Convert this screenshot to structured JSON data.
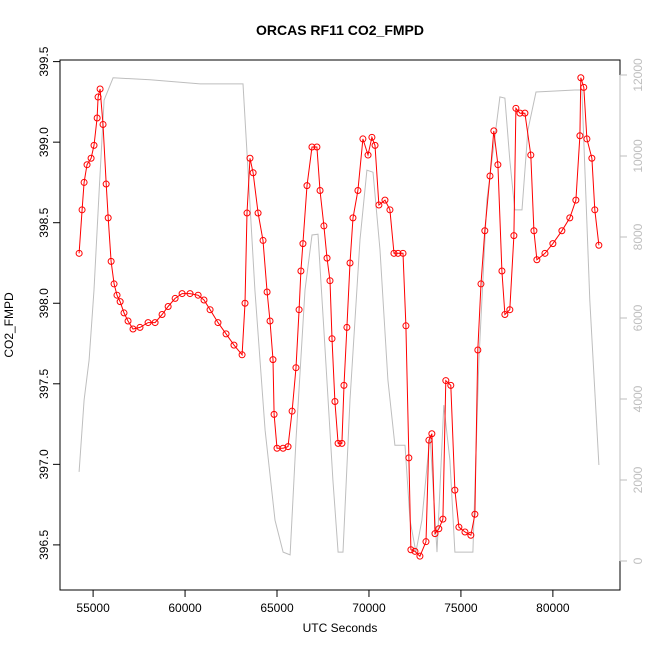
{
  "chart_data": {
    "type": "line",
    "title": "ORCAS RF11 CO2_FMPD",
    "xlabel": "UTC Seconds",
    "ylabel": "CO2_FMPD",
    "xlim": [
      53200,
      83650
    ],
    "xticks": [
      55000,
      60000,
      65000,
      70000,
      75000,
      80000
    ],
    "ylim": [
      396.22,
      399.51
    ],
    "yticks": [
      396.5,
      {
        "value": 397,
        "label": "397.0"
      },
      397.5,
      {
        "value": 398,
        "label": "398.0"
      },
      398.5,
      {
        "value": 399,
        "label": "399.0"
      },
      399.5
    ],
    "y2lim": [
      -716,
      12370
    ],
    "y2ticks": [
      0,
      2000,
      4000,
      6000,
      8000,
      10000,
      12000
    ],
    "series": [
      {
        "color": "#bebebe",
        "axis": "y2",
        "x": [
          54240,
          54510,
          54780,
          55050,
          55330,
          55600,
          56090,
          58100,
          60820,
          63150,
          63420,
          63800,
          64350,
          64890,
          65330,
          65710,
          66030,
          66520,
          66900,
          67230,
          67550,
          68040,
          68320,
          68590,
          68970,
          69510,
          69890,
          70220,
          70600,
          71030,
          71410,
          71960,
          72230,
          72550,
          72880,
          73320,
          73700,
          74070,
          74400,
          74670,
          75650,
          75980,
          76410,
          77120,
          77390,
          77660,
          77930,
          78320,
          78640,
          79080,
          81200,
          81580,
          82010,
          82500
        ],
        "values": [
          2200,
          3975,
          4960,
          6690,
          9160,
          11380,
          11930,
          11880,
          11780,
          11780,
          9650,
          6690,
          3230,
          1010,
          220,
          150,
          2990,
          6690,
          8050,
          8070,
          5700,
          2000,
          220,
          220,
          3980,
          7930,
          9650,
          9600,
          7680,
          4470,
          2860,
          2860,
          1010,
          220,
          1010,
          3110,
          220,
          3850,
          2490,
          220,
          220,
          4960,
          8910,
          11460,
          11430,
          9900,
          8670,
          8670,
          10640,
          11580,
          11630,
          11630,
          6440,
          2370
        ]
      },
      {
        "color": "#ff0000",
        "axis": "y",
        "x": [
          54240,
          54400,
          54510,
          54670,
          54890,
          55050,
          55220,
          55270,
          55380,
          55540,
          55710,
          55820,
          55980,
          56140,
          56300,
          56470,
          56680,
          56900,
          57170,
          57550,
          57990,
          58370,
          58750,
          59080,
          59460,
          59840,
          60270,
          60710,
          61030,
          61360,
          61790,
          62230,
          62660,
          63100,
          63260,
          63370,
          63530,
          63700,
          63970,
          64240,
          64460,
          64620,
          64780,
          64840,
          65000,
          65330,
          65600,
          65820,
          66030,
          66200,
          66300,
          66410,
          66630,
          66900,
          67170,
          67340,
          67550,
          67720,
          67880,
          67990,
          68150,
          68320,
          68530,
          68640,
          68800,
          68970,
          69130,
          69400,
          69670,
          69950,
          70160,
          70330,
          70540,
          70870,
          71140,
          71360,
          71580,
          71850,
          72010,
          72170,
          72280,
          72500,
          72770,
          73100,
          73260,
          73420,
          73590,
          73800,
          74020,
          74180,
          74450,
          74670,
          74890,
          75220,
          75540,
          75760,
          75920,
          76090,
          76300,
          76580,
          76790,
          77010,
          77230,
          77390,
          77660,
          77880,
          77990,
          78210,
          78480,
          78800,
          78970,
          79130,
          79570,
          80000,
          80490,
          80920,
          81250,
          81470,
          81520,
          81680,
          81850,
          82120,
          82280,
          82500
        ],
        "values": [
          398.31,
          398.58,
          398.75,
          398.86,
          398.9,
          398.98,
          399.15,
          399.28,
          399.33,
          399.11,
          398.74,
          398.53,
          398.26,
          398.12,
          398.05,
          398.01,
          397.94,
          397.89,
          397.84,
          397.85,
          397.88,
          397.88,
          397.93,
          397.98,
          398.03,
          398.06,
          398.06,
          398.05,
          398.02,
          397.96,
          397.88,
          397.81,
          397.74,
          397.68,
          398.0,
          398.56,
          398.9,
          398.81,
          398.56,
          398.39,
          398.07,
          397.89,
          397.65,
          397.31,
          397.1,
          397.1,
          397.11,
          397.33,
          397.6,
          397.96,
          398.2,
          398.37,
          398.73,
          398.97,
          398.97,
          398.7,
          398.48,
          398.28,
          398.14,
          397.78,
          397.39,
          397.13,
          397.13,
          397.49,
          397.85,
          398.25,
          398.53,
          398.7,
          399.02,
          398.92,
          399.03,
          398.98,
          398.61,
          398.64,
          398.58,
          398.31,
          398.31,
          398.31,
          397.86,
          397.04,
          396.47,
          396.46,
          396.43,
          396.52,
          397.15,
          397.19,
          396.57,
          396.6,
          396.66,
          397.52,
          397.49,
          396.84,
          396.61,
          396.58,
          396.56,
          396.69,
          397.71,
          398.12,
          398.45,
          398.79,
          399.07,
          398.86,
          398.2,
          397.93,
          397.96,
          398.42,
          399.21,
          399.18,
          399.18,
          398.92,
          398.45,
          398.27,
          398.31,
          398.37,
          398.45,
          398.53,
          398.64,
          399.04,
          399.4,
          399.34,
          399.02,
          398.9,
          398.58,
          398.36
        ]
      }
    ]
  }
}
